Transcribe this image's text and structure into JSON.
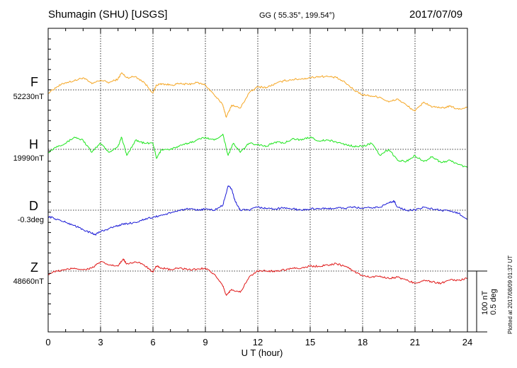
{
  "header": {
    "station": "Shumagin (SHU)  [USGS]",
    "coords": "GG ( 55.35°, 199.54°)",
    "date": "2017/07/09"
  },
  "components": [
    {
      "letter": "F",
      "baseline": "52230nT",
      "color": "#f5a623"
    },
    {
      "letter": "H",
      "baseline": "19990nT",
      "color": "#1ee51e"
    },
    {
      "letter": "D",
      "baseline": "-0.3deg",
      "color": "#1a1ad6"
    },
    {
      "letter": "Z",
      "baseline": "48660nT",
      "color": "#e01818"
    }
  ],
  "scale_bar": {
    "nt": "100 nT",
    "deg": "0.5 deg"
  },
  "plotted_note": "Plotted at 2017/08/09 01:37 UT",
  "chart_data": {
    "type": "line",
    "xlabel": "U T (hour)",
    "xlim": [
      0,
      24
    ],
    "xticks": [
      "0",
      "3",
      "6",
      "9",
      "12",
      "15",
      "18",
      "21",
      "24"
    ],
    "grid": true,
    "units": "nT offset from baseline (D in scaled units)",
    "series": [
      {
        "name": "F",
        "x": [
          0,
          0.5,
          1,
          1.5,
          2,
          2.5,
          3,
          3.5,
          4,
          4.2,
          4.5,
          5,
          5.5,
          6,
          6.2,
          6.5,
          7,
          7.5,
          8,
          8.5,
          9,
          9.5,
          10,
          10.2,
          10.5,
          11,
          11.5,
          12,
          12.5,
          13,
          13.5,
          14,
          14.5,
          15,
          15.5,
          16,
          16.5,
          17,
          17.5,
          18,
          18.5,
          19,
          19.5,
          20,
          20.5,
          21,
          21.5,
          22,
          22.5,
          23,
          23.5,
          24
        ],
        "y": [
          -5,
          5,
          12,
          15,
          20,
          10,
          16,
          12,
          18,
          28,
          20,
          22,
          12,
          -5,
          8,
          10,
          8,
          10,
          9,
          12,
          8,
          -8,
          -25,
          -45,
          -25,
          -30,
          -5,
          5,
          4,
          10,
          15,
          17,
          18,
          20,
          22,
          22,
          20,
          12,
          0,
          -8,
          -10,
          -12,
          -20,
          -15,
          -25,
          -35,
          -20,
          -28,
          -30,
          -27,
          -32,
          -28
        ]
      },
      {
        "name": "H",
        "x": [
          0,
          0.5,
          1,
          1.5,
          2,
          2.5,
          3,
          3.5,
          4,
          4.2,
          4.5,
          5,
          5.5,
          6,
          6.2,
          6.5,
          7,
          7.5,
          8,
          8.5,
          9,
          9.5,
          10,
          10.3,
          10.6,
          11,
          11.5,
          12,
          12.5,
          13,
          13.5,
          14,
          14.5,
          15,
          15.5,
          16,
          16.5,
          17,
          17.5,
          18,
          18.5,
          19,
          19.5,
          20,
          20.5,
          21,
          21.5,
          22,
          22.5,
          23,
          23.5,
          24
        ],
        "y": [
          -5,
          5,
          10,
          20,
          15,
          -5,
          10,
          -5,
          5,
          20,
          -10,
          15,
          10,
          10,
          -15,
          0,
          0,
          5,
          10,
          15,
          20,
          15,
          25,
          -10,
          10,
          -5,
          10,
          8,
          5,
          12,
          10,
          18,
          15,
          20,
          14,
          15,
          12,
          8,
          5,
          5,
          10,
          -10,
          0,
          -18,
          -20,
          -10,
          -20,
          -12,
          -22,
          -18,
          -25,
          -30
        ]
      },
      {
        "name": "D",
        "x": [
          0,
          0.5,
          1,
          1.5,
          2,
          2.5,
          2.7,
          3,
          3.5,
          4,
          4.5,
          5,
          5.5,
          6,
          6.5,
          7,
          7.5,
          8,
          8.5,
          9,
          9.5,
          10,
          10.3,
          10.5,
          10.7,
          11,
          11.5,
          12,
          12.5,
          13,
          13.5,
          14,
          14.5,
          15,
          15.5,
          16,
          16.5,
          17,
          17.5,
          18,
          18.5,
          19,
          19.5,
          19.8,
          20,
          20.5,
          21,
          21.5,
          22,
          22.5,
          23,
          23.5,
          24
        ],
        "y": [
          -10,
          -15,
          -20,
          -25,
          -32,
          -38,
          -40,
          -35,
          -30,
          -25,
          -22,
          -20,
          -15,
          -12,
          -8,
          -5,
          0,
          2,
          0,
          2,
          0,
          8,
          40,
          35,
          15,
          0,
          0,
          5,
          3,
          2,
          4,
          2,
          0,
          2,
          3,
          2,
          4,
          3,
          5,
          3,
          4,
          5,
          12,
          15,
          5,
          0,
          0,
          5,
          2,
          0,
          -2,
          -5,
          -15
        ]
      },
      {
        "name": "Z",
        "x": [
          0,
          0.5,
          1,
          1.5,
          2,
          2.5,
          3,
          3.5,
          4,
          4.3,
          4.5,
          5,
          5.5,
          6,
          6.2,
          6.5,
          7,
          7.5,
          8,
          8.5,
          9,
          9.5,
          10,
          10.2,
          10.5,
          11,
          11.5,
          12,
          12.5,
          13,
          13.5,
          14,
          14.5,
          15,
          15.5,
          16,
          16.5,
          17,
          17.5,
          18,
          18.5,
          19,
          19.5,
          20,
          20.5,
          21,
          21.5,
          22,
          22.5,
          23,
          23.5,
          24
        ],
        "y": [
          -5,
          0,
          2,
          5,
          2,
          5,
          15,
          10,
          8,
          20,
          12,
          15,
          10,
          -2,
          8,
          5,
          2,
          5,
          2,
          3,
          5,
          -5,
          -25,
          -40,
          -30,
          -35,
          -10,
          0,
          0,
          0,
          2,
          5,
          5,
          8,
          8,
          10,
          12,
          8,
          0,
          -8,
          -10,
          -8,
          -12,
          -10,
          -15,
          -20,
          -15,
          -18,
          -20,
          -15,
          -15,
          -12
        ]
      }
    ]
  }
}
